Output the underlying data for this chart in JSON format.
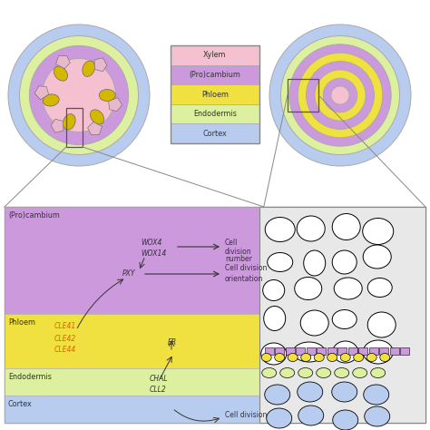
{
  "colors": {
    "xylem": "#f5c0d0",
    "procambium": "#cc99dd",
    "phloem": "#f0e040",
    "endodermis": "#ddf0a0",
    "cortex": "#b8ccf0",
    "background": "#ffffff",
    "orange_text": "#dd6600",
    "arrow_color": "#333333",
    "circle_gold": "#d4b800",
    "circle_pink": "#e8b8cc",
    "gray_line": "#999999"
  },
  "legend_items": [
    "Xylem",
    "(Pro)cambium",
    "Phloem",
    "Endodermis",
    "Cortex"
  ],
  "legend_colors": [
    "#f5c0d0",
    "#cc99dd",
    "#f0e040",
    "#ddf0a0",
    "#b8ccf0"
  ]
}
